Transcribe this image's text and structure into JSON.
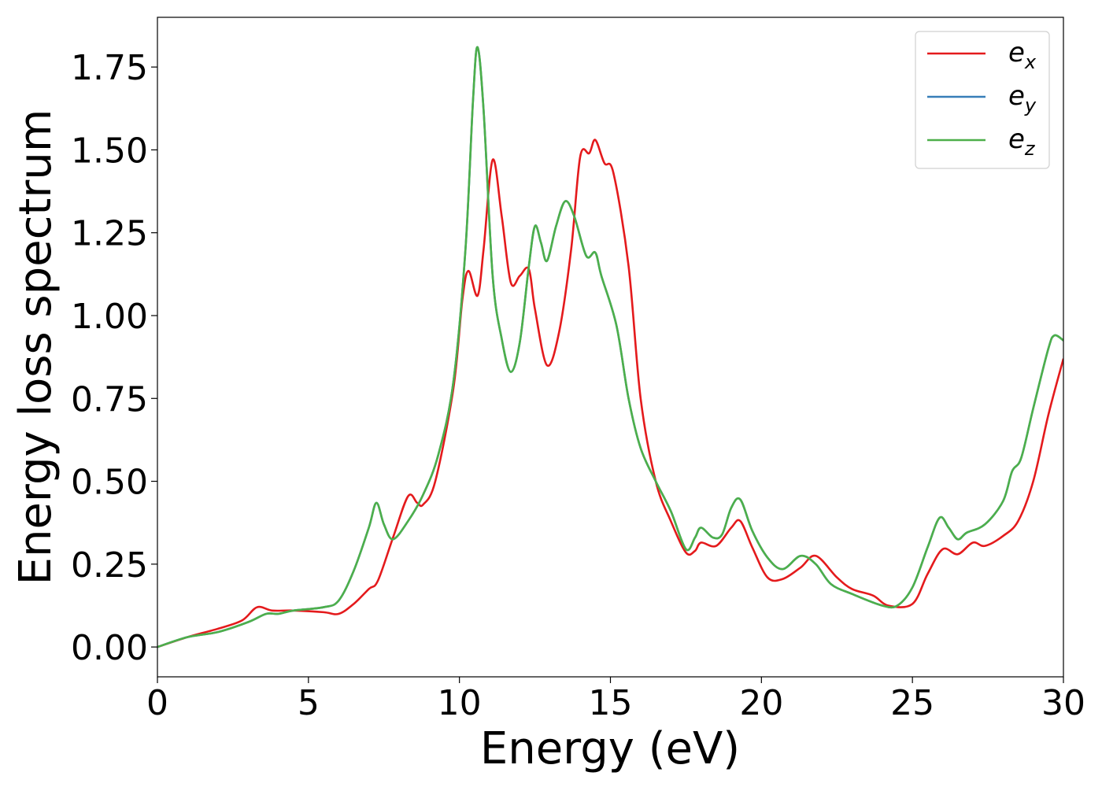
{
  "chart_data": {
    "type": "line",
    "title": "",
    "xlabel": "Energy (eV)",
    "ylabel": "Energy loss spectrum",
    "xlim": [
      0,
      30
    ],
    "ylim": [
      -0.09,
      1.9
    ],
    "xticks": [
      0,
      5,
      10,
      15,
      20,
      25,
      30
    ],
    "xtick_labels": [
      "0",
      "5",
      "10",
      "15",
      "20",
      "25",
      "30"
    ],
    "yticks": [
      0.0,
      0.25,
      0.5,
      0.75,
      1.0,
      1.25,
      1.5,
      1.75
    ],
    "ytick_labels": [
      "0.00",
      "0.25",
      "0.50",
      "0.75",
      "1.00",
      "1.25",
      "1.50",
      "1.75"
    ],
    "grid": false,
    "legend_position": "top-right",
    "series": [
      {
        "name": "e",
        "subscript": "x",
        "color": "#e41a1c",
        "points": [
          [
            0,
            0
          ],
          [
            1,
            0.03
          ],
          [
            2,
            0.055
          ],
          [
            2.8,
            0.08
          ],
          [
            3.3,
            0.12
          ],
          [
            3.8,
            0.11
          ],
          [
            4.5,
            0.11
          ],
          [
            5.5,
            0.105
          ],
          [
            6,
            0.1
          ],
          [
            6.5,
            0.13
          ],
          [
            7,
            0.175
          ],
          [
            7.3,
            0.2
          ],
          [
            7.8,
            0.33
          ],
          [
            8.3,
            0.455
          ],
          [
            8.6,
            0.435
          ],
          [
            8.8,
            0.43
          ],
          [
            9.2,
            0.5
          ],
          [
            9.8,
            0.78
          ],
          [
            10.1,
            1.05
          ],
          [
            10.3,
            1.135
          ],
          [
            10.6,
            1.06
          ],
          [
            10.8,
            1.2
          ],
          [
            11.1,
            1.47
          ],
          [
            11.4,
            1.3
          ],
          [
            11.7,
            1.1
          ],
          [
            12,
            1.12
          ],
          [
            12.3,
            1.14
          ],
          [
            12.5,
            1.02
          ],
          [
            12.9,
            0.85
          ],
          [
            13.3,
            0.95
          ],
          [
            13.7,
            1.2
          ],
          [
            14,
            1.48
          ],
          [
            14.3,
            1.49
          ],
          [
            14.5,
            1.53
          ],
          [
            14.8,
            1.46
          ],
          [
            15.1,
            1.43
          ],
          [
            15.6,
            1.15
          ],
          [
            16,
            0.75
          ],
          [
            16.5,
            0.5
          ],
          [
            17,
            0.38
          ],
          [
            17.5,
            0.285
          ],
          [
            17.8,
            0.29
          ],
          [
            18,
            0.315
          ],
          [
            18.5,
            0.305
          ],
          [
            19,
            0.36
          ],
          [
            19.3,
            0.38
          ],
          [
            19.7,
            0.3
          ],
          [
            20.2,
            0.21
          ],
          [
            20.7,
            0.205
          ],
          [
            21.3,
            0.24
          ],
          [
            21.8,
            0.275
          ],
          [
            22.5,
            0.21
          ],
          [
            23,
            0.175
          ],
          [
            23.7,
            0.155
          ],
          [
            24.2,
            0.125
          ],
          [
            25,
            0.13
          ],
          [
            25.5,
            0.22
          ],
          [
            26,
            0.295
          ],
          [
            26.5,
            0.28
          ],
          [
            27,
            0.315
          ],
          [
            27.4,
            0.305
          ],
          [
            28,
            0.335
          ],
          [
            28.5,
            0.38
          ],
          [
            29,
            0.5
          ],
          [
            29.5,
            0.7
          ],
          [
            30,
            0.87
          ]
        ]
      },
      {
        "name": "e",
        "subscript": "y",
        "color": "#377eb8",
        "points": [
          [
            0,
            0
          ],
          [
            1,
            0.03
          ],
          [
            2,
            0.045
          ],
          [
            3,
            0.075
          ],
          [
            3.6,
            0.1
          ],
          [
            4,
            0.1
          ],
          [
            4.5,
            0.11
          ],
          [
            5.5,
            0.12
          ],
          [
            6,
            0.14
          ],
          [
            6.5,
            0.23
          ],
          [
            7,
            0.36
          ],
          [
            7.25,
            0.435
          ],
          [
            7.5,
            0.37
          ],
          [
            7.8,
            0.325
          ],
          [
            8.3,
            0.38
          ],
          [
            8.8,
            0.46
          ],
          [
            9.3,
            0.58
          ],
          [
            9.8,
            0.8
          ],
          [
            10.2,
            1.2
          ],
          [
            10.45,
            1.65
          ],
          [
            10.6,
            1.81
          ],
          [
            10.8,
            1.62
          ],
          [
            11.1,
            1.12
          ],
          [
            11.4,
            0.93
          ],
          [
            11.7,
            0.83
          ],
          [
            12,
            0.92
          ],
          [
            12.3,
            1.15
          ],
          [
            12.5,
            1.27
          ],
          [
            12.7,
            1.22
          ],
          [
            12.9,
            1.165
          ],
          [
            13.2,
            1.27
          ],
          [
            13.5,
            1.345
          ],
          [
            13.8,
            1.3
          ],
          [
            14.2,
            1.18
          ],
          [
            14.5,
            1.19
          ],
          [
            14.7,
            1.12
          ],
          [
            15.2,
            0.97
          ],
          [
            15.6,
            0.75
          ],
          [
            16,
            0.6
          ],
          [
            16.5,
            0.5
          ],
          [
            17,
            0.41
          ],
          [
            17.5,
            0.295
          ],
          [
            17.8,
            0.33
          ],
          [
            18,
            0.36
          ],
          [
            18.4,
            0.33
          ],
          [
            18.7,
            0.34
          ],
          [
            19,
            0.42
          ],
          [
            19.3,
            0.445
          ],
          [
            19.7,
            0.35
          ],
          [
            20.2,
            0.27
          ],
          [
            20.7,
            0.235
          ],
          [
            21.3,
            0.275
          ],
          [
            21.8,
            0.25
          ],
          [
            22.3,
            0.19
          ],
          [
            23,
            0.16
          ],
          [
            24,
            0.125
          ],
          [
            24.5,
            0.125
          ],
          [
            25,
            0.18
          ],
          [
            25.5,
            0.3
          ],
          [
            25.9,
            0.39
          ],
          [
            26.2,
            0.36
          ],
          [
            26.5,
            0.325
          ],
          [
            26.8,
            0.345
          ],
          [
            27.4,
            0.37
          ],
          [
            28,
            0.44
          ],
          [
            28.3,
            0.53
          ],
          [
            28.6,
            0.57
          ],
          [
            29,
            0.72
          ],
          [
            29.5,
            0.9
          ],
          [
            29.7,
            0.94
          ],
          [
            30,
            0.925
          ]
        ]
      },
      {
        "name": "e",
        "subscript": "z",
        "color": "#4daf4a",
        "points": [
          [
            0,
            0
          ],
          [
            1,
            0.03
          ],
          [
            2,
            0.045
          ],
          [
            3,
            0.075
          ],
          [
            3.6,
            0.1
          ],
          [
            4,
            0.1
          ],
          [
            4.5,
            0.11
          ],
          [
            5.5,
            0.12
          ],
          [
            6,
            0.14
          ],
          [
            6.5,
            0.23
          ],
          [
            7,
            0.36
          ],
          [
            7.25,
            0.435
          ],
          [
            7.5,
            0.37
          ],
          [
            7.8,
            0.325
          ],
          [
            8.3,
            0.38
          ],
          [
            8.8,
            0.46
          ],
          [
            9.3,
            0.58
          ],
          [
            9.8,
            0.8
          ],
          [
            10.2,
            1.2
          ],
          [
            10.45,
            1.65
          ],
          [
            10.6,
            1.81
          ],
          [
            10.8,
            1.62
          ],
          [
            11.1,
            1.12
          ],
          [
            11.4,
            0.93
          ],
          [
            11.7,
            0.83
          ],
          [
            12,
            0.92
          ],
          [
            12.3,
            1.15
          ],
          [
            12.5,
            1.27
          ],
          [
            12.7,
            1.22
          ],
          [
            12.9,
            1.165
          ],
          [
            13.2,
            1.27
          ],
          [
            13.5,
            1.345
          ],
          [
            13.8,
            1.3
          ],
          [
            14.2,
            1.18
          ],
          [
            14.5,
            1.19
          ],
          [
            14.7,
            1.12
          ],
          [
            15.2,
            0.97
          ],
          [
            15.6,
            0.75
          ],
          [
            16,
            0.6
          ],
          [
            16.5,
            0.5
          ],
          [
            17,
            0.41
          ],
          [
            17.5,
            0.295
          ],
          [
            17.8,
            0.33
          ],
          [
            18,
            0.36
          ],
          [
            18.4,
            0.33
          ],
          [
            18.7,
            0.34
          ],
          [
            19,
            0.42
          ],
          [
            19.3,
            0.445
          ],
          [
            19.7,
            0.35
          ],
          [
            20.2,
            0.27
          ],
          [
            20.7,
            0.235
          ],
          [
            21.3,
            0.275
          ],
          [
            21.8,
            0.25
          ],
          [
            22.3,
            0.19
          ],
          [
            23,
            0.16
          ],
          [
            24,
            0.125
          ],
          [
            24.5,
            0.125
          ],
          [
            25,
            0.18
          ],
          [
            25.5,
            0.3
          ],
          [
            25.9,
            0.39
          ],
          [
            26.2,
            0.36
          ],
          [
            26.5,
            0.325
          ],
          [
            26.8,
            0.345
          ],
          [
            27.4,
            0.37
          ],
          [
            28,
            0.44
          ],
          [
            28.3,
            0.53
          ],
          [
            28.6,
            0.57
          ],
          [
            29,
            0.72
          ],
          [
            29.5,
            0.9
          ],
          [
            29.7,
            0.94
          ],
          [
            30,
            0.925
          ]
        ]
      }
    ]
  }
}
